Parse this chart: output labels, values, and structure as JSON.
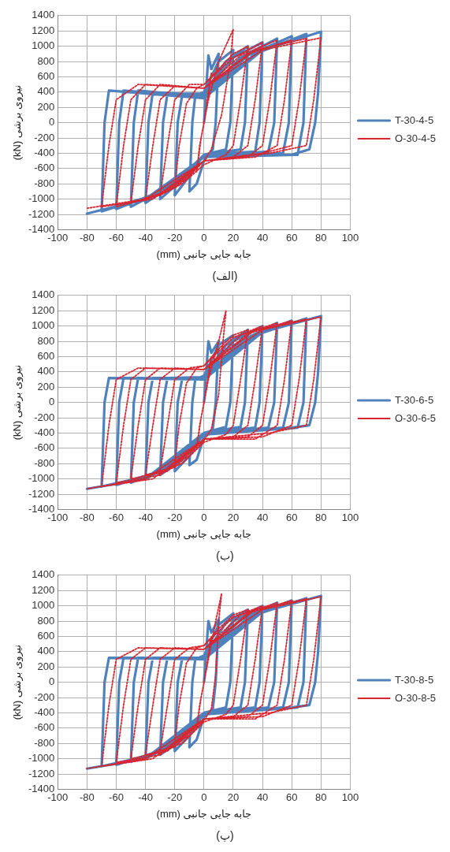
{
  "chart_data": [
    {
      "type": "line",
      "title": "(الف)",
      "xlabel": "جابه جایی جانبی (mm)",
      "ylabel": "نیروی برشی (kN)",
      "xlim": [
        -100,
        100
      ],
      "xticks": [
        -100,
        -80,
        -60,
        -40,
        -20,
        0,
        20,
        40,
        60,
        80,
        100
      ],
      "ylim": [
        -1400,
        1400
      ],
      "yticks": [
        -1400,
        -1200,
        -1000,
        -800,
        -600,
        -400,
        -200,
        0,
        200,
        400,
        600,
        800,
        1000,
        1200,
        1400
      ],
      "grid": true,
      "legend": "right",
      "marker": "none",
      "series": [
        {
          "name": "T-30-4-5",
          "color": "#4f81bd",
          "line_style": "solid",
          "x": [
            0,
            3,
            5,
            10,
            8,
            6,
            0,
            -5,
            -10,
            -8,
            -6,
            0,
            10,
            20,
            18,
            15,
            0,
            -10,
            -20,
            -18,
            -15,
            0,
            15,
            30,
            28,
            25,
            0,
            -15,
            -30,
            -28,
            -25,
            0,
            20,
            40,
            38,
            35,
            0,
            -20,
            -40,
            -38,
            -35,
            0,
            25,
            50,
            48,
            44,
            0,
            -25,
            -50,
            -48,
            -45,
            0,
            30,
            60,
            58,
            54,
            0,
            -30,
            -60,
            -58,
            -55,
            0,
            35,
            70,
            68,
            64,
            0,
            -35,
            -70,
            -68,
            -65,
            0,
            40,
            80,
            78,
            76,
            72,
            60,
            0,
            -40,
            -80
          ],
          "values": [
            0,
            880,
            700,
            900,
            0,
            -350,
            -500,
            -800,
            -900,
            0,
            350,
            400,
            800,
            950,
            0,
            -350,
            -420,
            -700,
            -950,
            0,
            350,
            380,
            800,
            1000,
            0,
            -350,
            -420,
            -750,
            -1000,
            0,
            380,
            380,
            850,
            1050,
            0,
            -380,
            -420,
            -800,
            -1050,
            0,
            400,
            360,
            850,
            1100,
            0,
            -380,
            -430,
            -850,
            -1100,
            0,
            420,
            340,
            880,
            1130,
            0,
            -400,
            -450,
            -900,
            -1130,
            0,
            420,
            330,
            900,
            1160,
            0,
            -420,
            -450,
            -950,
            -1160,
            0,
            420,
            320,
            950,
            1190,
            400,
            0,
            -350,
            -420,
            -450,
            -1000,
            -1190
          ]
        },
        {
          "name": "O-30-4-5",
          "color": "#d9262e",
          "line_style": "dotted",
          "x": [
            0,
            5,
            2,
            -3,
            -5,
            -2,
            3,
            10,
            20,
            18,
            12,
            5,
            0,
            -10,
            -20,
            -17,
            -12,
            -5,
            0,
            10,
            20,
            30,
            25,
            20,
            15,
            0,
            -15,
            -30,
            -25,
            -20,
            -10,
            0,
            20,
            40,
            35,
            30,
            20,
            0,
            -20,
            -40,
            -35,
            -30,
            -20,
            0,
            25,
            50,
            45,
            40,
            30,
            0,
            -25,
            -50,
            -45,
            -40,
            -30,
            0,
            30,
            60,
            55,
            50,
            35,
            0,
            -30,
            -60,
            -55,
            -50,
            -40,
            0,
            35,
            70,
            65,
            60,
            40,
            0,
            -35,
            -70,
            -65,
            -60,
            -45,
            0,
            40,
            80,
            75,
            70,
            45,
            0,
            -40,
            -80
          ],
          "values": [
            0,
            650,
            200,
            -300,
            -650,
            -200,
            300,
            800,
            1220,
            800,
            100,
            -350,
            -500,
            -700,
            -850,
            -300,
            250,
            450,
            500,
            700,
            900,
            1000,
            300,
            -300,
            -420,
            -550,
            -800,
            -950,
            -300,
            300,
            500,
            500,
            850,
            1050,
            300,
            -300,
            -450,
            -500,
            -850,
            -1000,
            -300,
            300,
            480,
            450,
            880,
            1080,
            300,
            -300,
            -450,
            -500,
            -900,
            -1050,
            -300,
            300,
            500,
            450,
            900,
            1080,
            300,
            -300,
            -450,
            -500,
            -950,
            -1100,
            -300,
            300,
            500,
            450,
            950,
            1100,
            300,
            -300,
            -400,
            -500,
            -1000,
            -1100,
            -300,
            300,
            500,
            450,
            950,
            1110,
            300,
            -300,
            -400,
            -500,
            -1000,
            -1120
          ]
        }
      ]
    },
    {
      "type": "line",
      "title": "(ب)",
      "xlabel": "جابه جایی جانبی (mm)",
      "ylabel": "نیروی برشی (kN)",
      "xlim": [
        -100,
        100
      ],
      "xticks": [
        -100,
        -80,
        -60,
        -40,
        -20,
        0,
        20,
        40,
        60,
        80,
        100
      ],
      "ylim": [
        -1400,
        1400
      ],
      "yticks": [
        -1400,
        -1200,
        -1000,
        -800,
        -600,
        -400,
        -200,
        0,
        200,
        400,
        600,
        800,
        1000,
        1200,
        1400
      ],
      "grid": true,
      "legend": "right",
      "marker": "none",
      "series": [
        {
          "name": "T-30-6-5",
          "color": "#4f81bd",
          "line_style": "solid",
          "x": [
            0,
            3,
            5,
            10,
            8,
            6,
            0,
            -5,
            -10,
            -8,
            -6,
            0,
            10,
            20,
            18,
            15,
            0,
            -10,
            -20,
            -18,
            -15,
            0,
            15,
            30,
            28,
            25,
            0,
            -15,
            -30,
            -28,
            -25,
            0,
            20,
            40,
            38,
            35,
            0,
            -20,
            -40,
            -38,
            -35,
            0,
            25,
            50,
            48,
            44,
            0,
            -25,
            -50,
            -48,
            -45,
            0,
            30,
            60,
            58,
            54,
            0,
            -30,
            -60,
            -58,
            -55,
            0,
            35,
            70,
            68,
            64,
            0,
            -35,
            -70,
            -68,
            -65,
            0,
            40,
            80,
            78,
            76,
            72,
            60,
            0,
            -40,
            -80
          ],
          "values": [
            0,
            800,
            650,
            800,
            0,
            -350,
            -450,
            -750,
            -820,
            0,
            300,
            350,
            750,
            880,
            0,
            -320,
            -400,
            -700,
            -900,
            0,
            300,
            330,
            750,
            950,
            0,
            -320,
            -400,
            -750,
            -950,
            0,
            320,
            330,
            800,
            1000,
            0,
            -330,
            -400,
            -800,
            -1000,
            0,
            320,
            320,
            800,
            1040,
            0,
            -330,
            -420,
            -850,
            -1050,
            0,
            320,
            300,
            850,
            1070,
            0,
            -330,
            -420,
            -900,
            -1080,
            0,
            320,
            300,
            880,
            1100,
            0,
            -330,
            -420,
            -950,
            -1100,
            0,
            320,
            300,
            920,
            1130,
            400,
            0,
            -300,
            -330,
            -400,
            -1000,
            -1130
          ]
        },
        {
          "name": "O-30-6-5",
          "color": "#d9262e",
          "line_style": "dotted",
          "x": [
            0,
            5,
            2,
            -3,
            -5,
            -2,
            3,
            10,
            15,
            13,
            10,
            5,
            0,
            -10,
            -20,
            -17,
            -12,
            -5,
            0,
            10,
            20,
            30,
            25,
            20,
            15,
            0,
            -15,
            -30,
            -25,
            -20,
            -10,
            0,
            20,
            40,
            35,
            30,
            20,
            0,
            -20,
            -40,
            -35,
            -30,
            -20,
            0,
            25,
            50,
            45,
            40,
            30,
            0,
            -25,
            -50,
            -45,
            -40,
            -30,
            0,
            30,
            60,
            55,
            50,
            35,
            0,
            -30,
            -60,
            -55,
            -50,
            -40,
            0,
            35,
            70,
            65,
            60,
            40,
            0,
            -35,
            -70,
            -65,
            -60,
            -45,
            0,
            40,
            80,
            75,
            70,
            45,
            0,
            -40,
            -80
          ],
          "values": [
            0,
            600,
            200,
            -300,
            -600,
            -200,
            300,
            800,
            1200,
            800,
            100,
            -350,
            -500,
            -700,
            -800,
            -300,
            250,
            450,
            480,
            700,
            880,
            950,
            300,
            -300,
            -420,
            -520,
            -800,
            -900,
            -300,
            300,
            450,
            480,
            850,
            1000,
            300,
            -300,
            -450,
            -480,
            -850,
            -950,
            -300,
            300,
            450,
            430,
            880,
            1040,
            300,
            -300,
            -450,
            -480,
            -900,
            -1000,
            -300,
            300,
            450,
            430,
            900,
            1070,
            300,
            -300,
            -480,
            -480,
            -950,
            -1050,
            -300,
            300,
            450,
            430,
            950,
            1090,
            300,
            -300,
            -450,
            -480,
            -1000,
            -1100,
            -300,
            300,
            450,
            430,
            950,
            1120,
            300,
            -300,
            -400,
            -480,
            -1000,
            -1130
          ]
        }
      ]
    },
    {
      "type": "line",
      "title": "(پ)",
      "xlabel": "جابه جایی جانبی (mm)",
      "ylabel": "نیروی برشی (kN)",
      "xlim": [
        -100,
        100
      ],
      "xticks": [
        -100,
        -80,
        -60,
        -40,
        -20,
        0,
        20,
        40,
        60,
        80,
        100
      ],
      "ylim": [
        -1400,
        1400
      ],
      "yticks": [
        -1400,
        -1200,
        -1000,
        -800,
        -600,
        -400,
        -200,
        0,
        200,
        400,
        600,
        800,
        1000,
        1200,
        1400
      ],
      "grid": true,
      "legend": "right",
      "marker": "none",
      "series": [
        {
          "name": "T-30-8-5",
          "color": "#4f81bd",
          "line_style": "solid",
          "x": [
            0,
            3,
            5,
            10,
            8,
            6,
            0,
            -5,
            -10,
            -8,
            -6,
            0,
            10,
            20,
            18,
            15,
            0,
            -10,
            -20,
            -18,
            -15,
            0,
            15,
            30,
            28,
            25,
            0,
            -15,
            -30,
            -28,
            -25,
            0,
            20,
            40,
            38,
            35,
            0,
            -20,
            -40,
            -38,
            -35,
            0,
            25,
            50,
            48,
            44,
            0,
            -25,
            -50,
            -48,
            -45,
            0,
            30,
            60,
            58,
            54,
            0,
            -30,
            -60,
            -58,
            -55,
            0,
            35,
            70,
            68,
            64,
            0,
            -35,
            -70,
            -68,
            -65,
            0,
            40,
            80,
            78,
            76,
            72,
            60,
            0,
            -40,
            -80
          ],
          "values": [
            0,
            800,
            650,
            820,
            0,
            -350,
            -450,
            -750,
            -850,
            0,
            300,
            350,
            750,
            900,
            0,
            -330,
            -400,
            -700,
            -900,
            0,
            300,
            330,
            780,
            950,
            0,
            -330,
            -400,
            -750,
            -950,
            0,
            320,
            320,
            800,
            1000,
            0,
            -330,
            -400,
            -800,
            -1000,
            0,
            320,
            320,
            820,
            1040,
            0,
            -330,
            -420,
            -850,
            -1040,
            0,
            320,
            300,
            850,
            1070,
            0,
            -330,
            -420,
            -900,
            -1080,
            0,
            320,
            300,
            880,
            1100,
            0,
            -330,
            -420,
            -950,
            -1100,
            0,
            320,
            300,
            920,
            1130,
            400,
            0,
            -300,
            -330,
            -400,
            -1000,
            -1130
          ]
        },
        {
          "name": "O-30-8-5",
          "color": "#d9262e",
          "line_style": "dotted",
          "x": [
            0,
            5,
            2,
            -3,
            -5,
            -2,
            3,
            8,
            12,
            10,
            8,
            5,
            0,
            -10,
            -20,
            -17,
            -12,
            -5,
            0,
            10,
            20,
            30,
            25,
            20,
            15,
            0,
            -15,
            -30,
            -25,
            -20,
            -10,
            0,
            20,
            40,
            35,
            30,
            20,
            0,
            -20,
            -40,
            -35,
            -30,
            -20,
            0,
            25,
            50,
            45,
            40,
            30,
            0,
            -25,
            -50,
            -45,
            -40,
            -30,
            0,
            30,
            60,
            55,
            50,
            35,
            0,
            -30,
            -60,
            -55,
            -50,
            -40,
            0,
            35,
            70,
            65,
            60,
            40,
            0,
            -35,
            -70,
            -65,
            -60,
            -45,
            0,
            40,
            80,
            75,
            70,
            45,
            0,
            -40,
            -80
          ],
          "values": [
            0,
            600,
            200,
            -300,
            -600,
            -200,
            300,
            800,
            1160,
            800,
            100,
            -350,
            -500,
            -700,
            -800,
            -300,
            250,
            450,
            480,
            700,
            880,
            950,
            300,
            -300,
            -420,
            -520,
            -800,
            -900,
            -300,
            300,
            450,
            480,
            850,
            1000,
            300,
            -300,
            -450,
            -480,
            -850,
            -950,
            -300,
            300,
            450,
            430,
            880,
            1040,
            300,
            -300,
            -450,
            -480,
            -900,
            -1000,
            -300,
            300,
            450,
            430,
            900,
            1070,
            300,
            -300,
            -480,
            -480,
            -950,
            -1050,
            -300,
            300,
            450,
            430,
            950,
            1090,
            300,
            -300,
            -450,
            -480,
            -1000,
            -1100,
            -300,
            300,
            450,
            430,
            950,
            1120,
            300,
            -300,
            -400,
            -480,
            -1000,
            -1130
          ]
        }
      ]
    }
  ]
}
